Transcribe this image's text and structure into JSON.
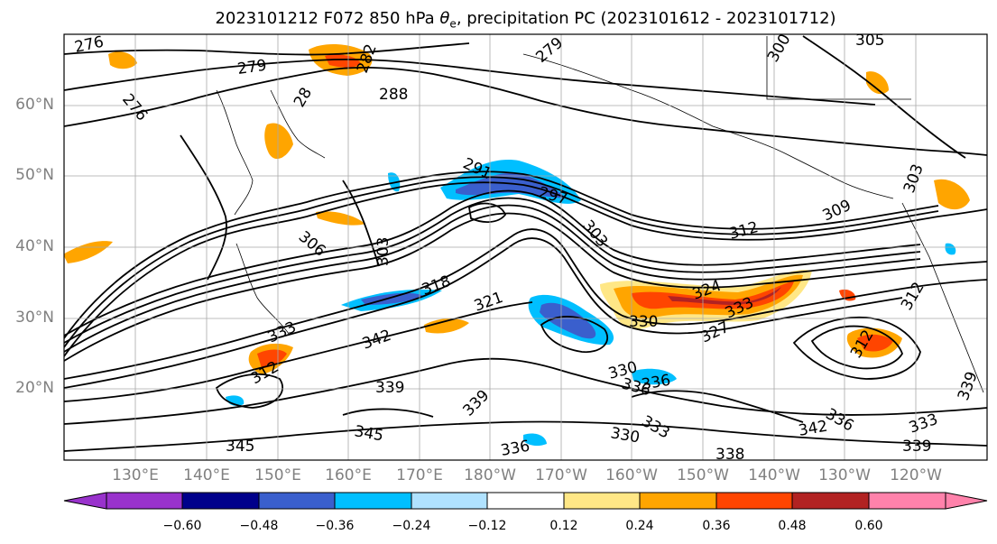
{
  "title_main": "2023101212 F072 850 hPa ",
  "title_theta": "θ",
  "title_sub": "e",
  "title_rest": ", precipitation PC (2023101612 - 2023101712)",
  "lat_labels": [
    "60°N",
    "50°N",
    "40°N",
    "30°N",
    "20°N"
  ],
  "lon_labels": [
    "130°E",
    "140°E",
    "150°E",
    "160°E",
    "170°E",
    "180°W",
    "170°W",
    "160°W",
    "150°W",
    "140°W",
    "130°W",
    "120°W"
  ],
  "colorbar": {
    "colors": [
      "#9932cc",
      "#00008b",
      "#3a5fcd",
      "#00bfff",
      "#b0e2ff",
      "#ffffff",
      "#ffe786",
      "#ffa500",
      "#ff4500",
      "#b22222",
      "#ff82ab"
    ],
    "tick_labels": [
      "−0.60",
      "−0.48",
      "−0.36",
      "−0.24",
      "−0.12",
      "0.12",
      "0.24",
      "0.36",
      "0.48",
      "0.60"
    ]
  },
  "contour_labels": [
    "276",
    "279",
    "276",
    "282",
    "288",
    "279",
    "300",
    "305",
    "28",
    "291",
    "297",
    "303",
    "306",
    "303",
    "309",
    "312",
    "318",
    "321",
    "324",
    "327",
    "330",
    "333",
    "342",
    "312",
    "333",
    "339",
    "345",
    "336",
    "339",
    "345",
    "330",
    "336",
    "333",
    "330",
    "338",
    "342",
    "336",
    "339",
    "336",
    "333",
    "312",
    "312",
    "339",
    "303"
  ]
}
